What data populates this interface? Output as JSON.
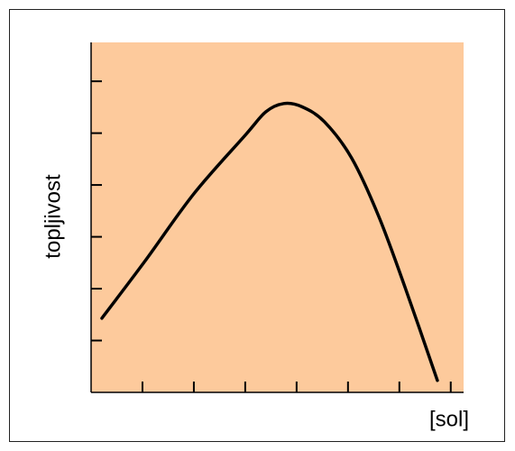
{
  "chart_data": {
    "type": "line",
    "y_label": "topljivost",
    "x_label": "[sol]",
    "x": [
      0.21,
      1.04,
      2.0,
      3.0,
      3.4,
      3.75,
      4.1,
      4.54,
      5.07,
      5.6,
      6.12,
      6.74
    ],
    "series": [
      {
        "color": "#000000",
        "values": [
          1.43,
          2.52,
          3.83,
          4.96,
          5.41,
          5.57,
          5.51,
          5.22,
          4.52,
          3.39,
          2.0,
          0.23
        ]
      }
    ],
    "xlim": [
      0,
      7.25
    ],
    "ylim": [
      0,
      6.75
    ],
    "xticks": [
      1,
      2,
      3,
      4,
      5,
      6,
      7
    ],
    "yticks": [
      1,
      2,
      3,
      4,
      5,
      6
    ],
    "background": "#fdca9c",
    "tick_labels": false
  }
}
